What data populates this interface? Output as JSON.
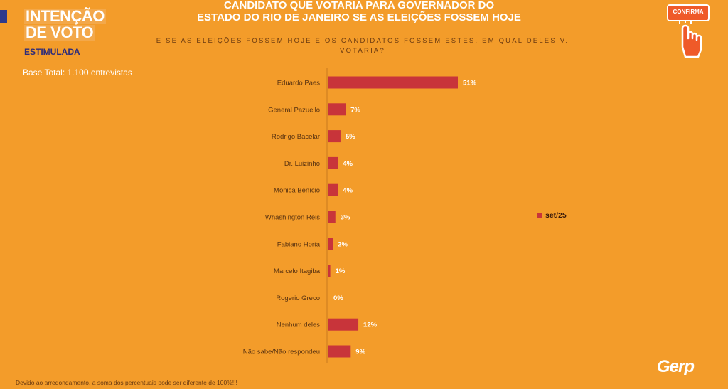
{
  "header": {
    "badge_line1": "INTENÇÃO",
    "badge_line2": "DE VOTO",
    "badge_sub": "ESTIMULADA",
    "title": "CANDIDATO QUE VOTARIA PARA GOVERNADOR DO\nESTADO DO RIO DE JANEIRO SE AS ELEIÇÕES FOSSEM HOJE",
    "question": "E SE AS ELEIÇÕES FOSSEM HOJE E OS CANDIDATOS FOSSEM ESTES, EM QUAL DELES V. VOTARIA?",
    "confirma_label": "CONFIRMA"
  },
  "base_text": "Base Total: 1.100 entrevistas",
  "footnote": "Devido ao arredondamento, a soma dos percentuais pode ser diferente de 100%!!!",
  "logo_text": "Gerp",
  "colors": {
    "background": "#f39c2a",
    "bar": "#c8343a",
    "badge_text": "#2e2c7a"
  },
  "chart_data": {
    "type": "bar",
    "orientation": "horizontal",
    "categories": [
      "Eduardo Paes",
      "General Pazuello",
      "Rodrigo Bacelar",
      "Dr. Luizinho",
      "Monica Benício",
      "Whashington Reis",
      "Fabiano Horta",
      "Marcelo Itagiba",
      "Rogerio Greco",
      "Nenhum deles",
      "Não sabe/Não respondeu"
    ],
    "series": [
      {
        "name": "set/25",
        "values": [
          51,
          7,
          5,
          4,
          4,
          3,
          2,
          1,
          0,
          12,
          9
        ],
        "labels": [
          "51%",
          "7%",
          "5%",
          "4%",
          "4%",
          "3%",
          "2%",
          "1%",
          "0%",
          "12%",
          "9%"
        ]
      }
    ],
    "xlim": [
      0,
      100
    ],
    "legend_position": "right",
    "grid": false
  }
}
